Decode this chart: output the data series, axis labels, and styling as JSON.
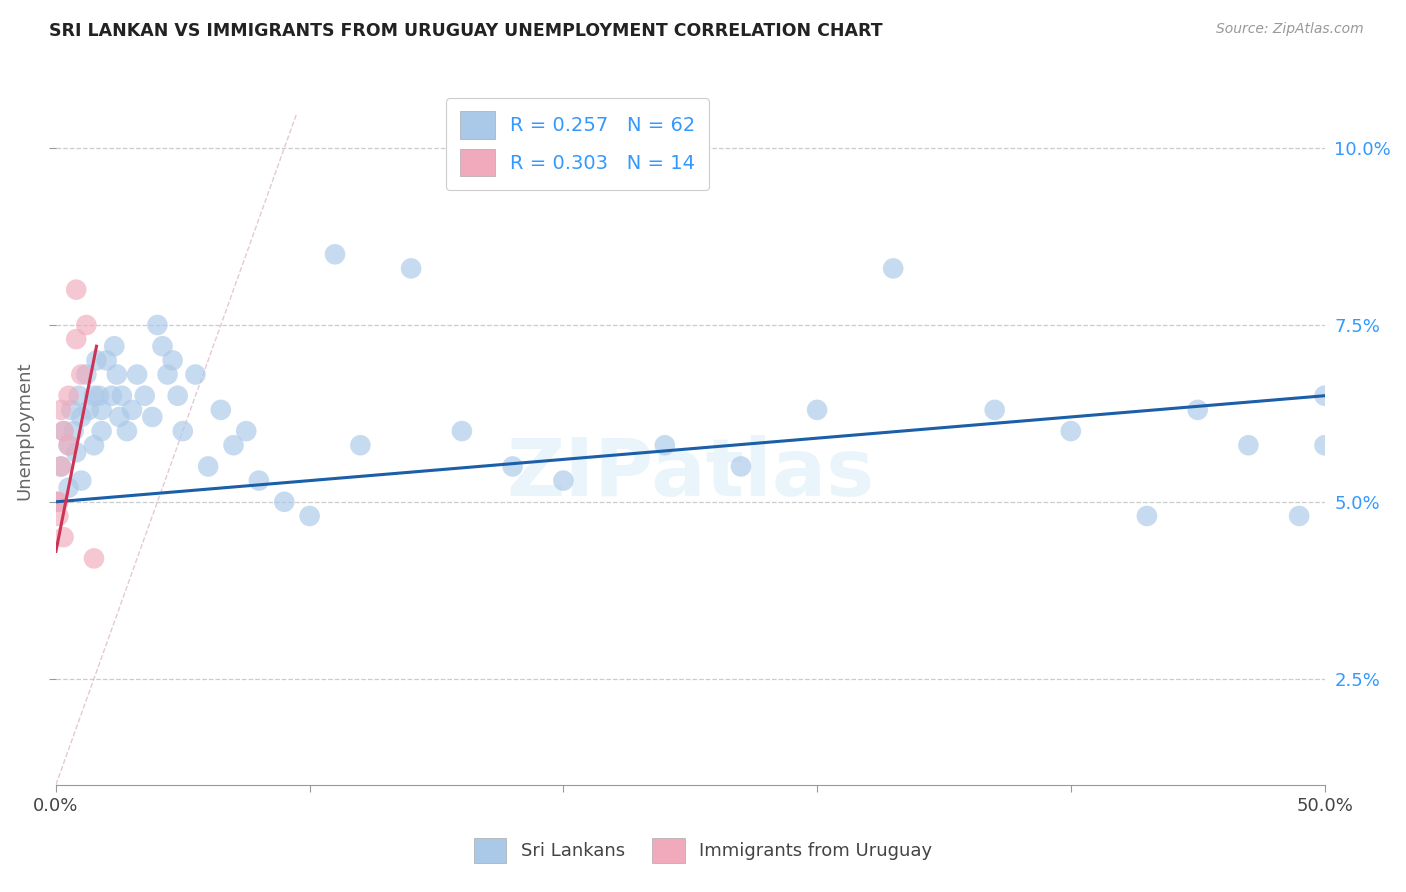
{
  "title": "SRI LANKAN VS IMMIGRANTS FROM URUGUAY UNEMPLOYMENT CORRELATION CHART",
  "source": "Source: ZipAtlas.com",
  "ylabel": "Unemployment",
  "legend_label1": "Sri Lankans",
  "legend_label2": "Immigrants from Uruguay",
  "R1": 0.257,
  "N1": 62,
  "R2": 0.303,
  "N2": 14,
  "color_sri": "#aac8e8",
  "color_uru": "#f0aabb",
  "color_sri_line": "#1a5fa8",
  "color_uru_line": "#cc3355",
  "color_ref_line": "#ddbbcc",
  "xlim": [
    0.0,
    0.5
  ],
  "ylim": [
    0.01,
    0.11
  ],
  "y_ticks": [
    0.025,
    0.05,
    0.075,
    0.1
  ],
  "y_tick_labels": [
    "2.5%",
    "5.0%",
    "7.5%",
    "10.0%"
  ],
  "x_tick_positions": [
    0.0,
    0.1,
    0.2,
    0.3,
    0.4,
    0.5
  ],
  "x_tick_labels": [
    "0.0%",
    "",
    "",
    "",
    "",
    "50.0%"
  ],
  "sri_x": [
    0.0,
    0.002,
    0.003,
    0.005,
    0.005,
    0.006,
    0.007,
    0.008,
    0.009,
    0.01,
    0.01,
    0.012,
    0.013,
    0.015,
    0.015,
    0.016,
    0.017,
    0.018,
    0.018,
    0.02,
    0.022,
    0.023,
    0.024,
    0.025,
    0.026,
    0.028,
    0.03,
    0.032,
    0.035,
    0.038,
    0.04,
    0.042,
    0.044,
    0.046,
    0.048,
    0.05,
    0.055,
    0.06,
    0.065,
    0.07,
    0.075,
    0.08,
    0.09,
    0.1,
    0.11,
    0.12,
    0.14,
    0.16,
    0.18,
    0.2,
    0.24,
    0.27,
    0.3,
    0.33,
    0.37,
    0.4,
    0.43,
    0.45,
    0.47,
    0.49,
    0.5,
    0.5
  ],
  "sri_y": [
    0.05,
    0.055,
    0.06,
    0.058,
    0.052,
    0.063,
    0.06,
    0.057,
    0.065,
    0.053,
    0.062,
    0.068,
    0.063,
    0.058,
    0.065,
    0.07,
    0.065,
    0.063,
    0.06,
    0.07,
    0.065,
    0.072,
    0.068,
    0.062,
    0.065,
    0.06,
    0.063,
    0.068,
    0.065,
    0.062,
    0.075,
    0.072,
    0.068,
    0.07,
    0.065,
    0.06,
    0.068,
    0.055,
    0.063,
    0.058,
    0.06,
    0.053,
    0.05,
    0.048,
    0.085,
    0.058,
    0.083,
    0.06,
    0.055,
    0.053,
    0.058,
    0.055,
    0.063,
    0.083,
    0.063,
    0.06,
    0.048,
    0.063,
    0.058,
    0.048,
    0.065,
    0.058
  ],
  "uru_x": [
    0.0,
    0.001,
    0.001,
    0.002,
    0.002,
    0.003,
    0.003,
    0.005,
    0.005,
    0.008,
    0.008,
    0.01,
    0.012,
    0.015
  ],
  "uru_y": [
    0.05,
    0.05,
    0.048,
    0.063,
    0.055,
    0.06,
    0.045,
    0.065,
    0.058,
    0.08,
    0.073,
    0.068,
    0.075,
    0.042
  ],
  "sri_line_x": [
    0.0,
    0.5
  ],
  "sri_line_y": [
    0.05,
    0.065
  ],
  "uru_line_x": [
    0.0,
    0.016
  ],
  "uru_line_y": [
    0.043,
    0.072
  ],
  "ref_line_x": [
    0.0,
    0.095
  ],
  "ref_line_y": [
    0.01,
    0.105
  ]
}
